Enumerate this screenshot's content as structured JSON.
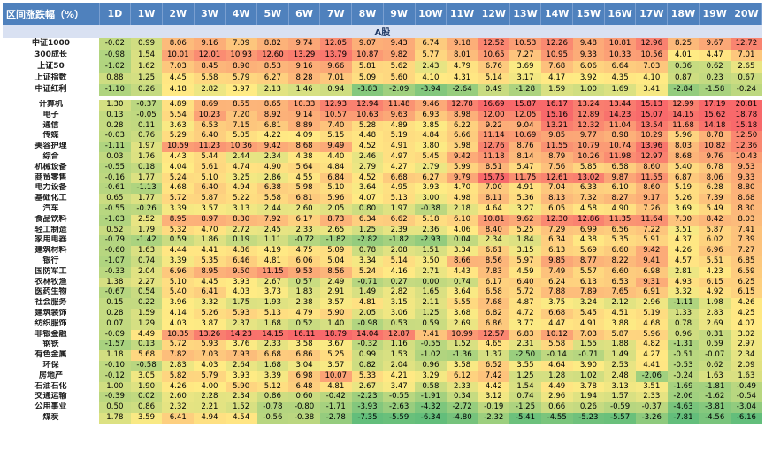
{
  "chart_data": {
    "type": "heatmap",
    "corner_label": "区间涨跌幅（%）",
    "columns": [
      "1D",
      "1W",
      "2W",
      "3W",
      "4W",
      "5W",
      "6W",
      "7W",
      "8W",
      "9W",
      "10W",
      "11W",
      "12W",
      "13W",
      "14W",
      "15W",
      "16W",
      "17W",
      "18W",
      "19W",
      "20W"
    ],
    "groups": [
      {
        "title": "A股",
        "rows": [
          {
            "name": "中证1000",
            "values": [
              -0.02,
              0.99,
              8.06,
              9.16,
              7.09,
              8.82,
              9.74,
              12.05,
              9.07,
              9.43,
              6.74,
              9.18,
              12.52,
              10.53,
              12.26,
              9.48,
              10.81,
              12.96,
              8.25,
              9.67,
              12.72
            ]
          },
          {
            "name": "300成长",
            "values": [
              -0.98,
              1.54,
              10.01,
              12.01,
              10.93,
              12.6,
              13.29,
              13.79,
              10.87,
              9.82,
              5.77,
              8.01,
              10.65,
              7.27,
              10.95,
              9.33,
              10.33,
              10.56,
              4.01,
              4.47,
              7.01
            ]
          },
          {
            "name": "上证50",
            "values": [
              -1.02,
              1.62,
              7.03,
              8.45,
              8.9,
              8.53,
              9.16,
              9.66,
              5.81,
              5.62,
              2.43,
              4.79,
              6.76,
              3.69,
              7.68,
              6.06,
              6.64,
              7.03,
              0.36,
              0.62,
              2.65
            ]
          },
          {
            "name": "上证指数",
            "values": [
              0.88,
              1.25,
              4.45,
              5.58,
              5.79,
              6.27,
              8.28,
              7.01,
              5.09,
              5.6,
              4.1,
              4.31,
              5.14,
              3.17,
              4.17,
              3.92,
              4.35,
              4.1,
              0.87,
              0.23,
              0.67
            ]
          },
          {
            "name": "中证红利",
            "values": [
              -1.1,
              0.26,
              4.18,
              2.82,
              3.97,
              2.13,
              1.46,
              0.94,
              -3.83,
              -2.09,
              -3.94,
              -2.64,
              0.49,
              -1.28,
              1.59,
              1.0,
              1.69,
              3.41,
              -2.84,
              -1.58,
              -0.24
            ]
          }
        ]
      },
      {
        "title": "",
        "rows": [
          {
            "name": "计算机",
            "values": [
              1.3,
              -0.37,
              4.89,
              8.69,
              8.55,
              8.65,
              10.33,
              12.93,
              12.94,
              11.48,
              9.46,
              12.78,
              16.69,
              15.87,
              16.17,
              13.24,
              13.44,
              15.13,
              12.99,
              17.19,
              20.81
            ]
          },
          {
            "name": "电子",
            "values": [
              0.13,
              -0.05,
              5.54,
              10.23,
              7.2,
              8.92,
              9.14,
              10.57,
              10.63,
              9.63,
              6.93,
              8.98,
              12.0,
              12.05,
              15.16,
              12.89,
              14.23,
              15.07,
              14.15,
              15.62,
              18.78
            ]
          },
          {
            "name": "通信",
            "values": [
              0.28,
              0.11,
              3.63,
              6.53,
              7.15,
              6.81,
              8.89,
              7.4,
              5.28,
              4.89,
              3.85,
              6.22,
              9.22,
              9.04,
              13.21,
              12.32,
              11.04,
              13.54,
              11.68,
              14.18,
              15.18
            ]
          },
          {
            "name": "传媒",
            "values": [
              -0.03,
              0.76,
              5.29,
              6.4,
              5.05,
              4.22,
              4.09,
              5.15,
              4.48,
              5.19,
              4.84,
              6.66,
              11.14,
              10.69,
              9.85,
              9.77,
              8.98,
              10.29,
              5.96,
              8.78,
              12.5
            ]
          },
          {
            "name": "美容护理",
            "values": [
              -1.11,
              1.97,
              10.59,
              11.23,
              10.36,
              9.42,
              8.68,
              9.49,
              4.52,
              4.91,
              3.8,
              5.98,
              12.76,
              8.76,
              11.55,
              10.79,
              10.74,
              13.96,
              8.03,
              10.82,
              12.36
            ]
          },
          {
            "name": "综合",
            "values": [
              0.03,
              1.76,
              4.43,
              5.44,
              2.44,
              2.34,
              4.38,
              4.4,
              2.46,
              4.97,
              5.45,
              9.42,
              11.18,
              8.14,
              8.79,
              10.26,
              11.98,
              12.97,
              8.68,
              9.76,
              10.43
            ]
          },
          {
            "name": "机械设备",
            "values": [
              -0.55,
              0.18,
              4.04,
              5.61,
              4.74,
              4.9,
              5.64,
              4.84,
              2.79,
              4.27,
              2.79,
              5.99,
              8.51,
              5.47,
              7.56,
              5.85,
              6.58,
              8.6,
              5.4,
              6.78,
              9.53
            ]
          },
          {
            "name": "商贸零售",
            "values": [
              -0.16,
              1.77,
              5.24,
              5.1,
              3.25,
              2.86,
              4.55,
              6.84,
              4.52,
              6.68,
              6.27,
              9.79,
              15.75,
              11.75,
              12.61,
              13.02,
              9.87,
              11.55,
              6.87,
              8.06,
              9.33
            ]
          },
          {
            "name": "电力设备",
            "values": [
              -0.61,
              -1.13,
              4.68,
              6.4,
              4.94,
              6.38,
              5.98,
              5.1,
              3.64,
              4.95,
              3.93,
              4.7,
              7.0,
              4.91,
              7.04,
              6.33,
              6.1,
              8.6,
              5.19,
              6.28,
              8.8
            ]
          },
          {
            "name": "基础化工",
            "values": [
              0.65,
              1.77,
              5.72,
              5.87,
              5.22,
              5.58,
              6.81,
              5.96,
              4.07,
              5.13,
              3.0,
              4.98,
              8.11,
              5.36,
              8.13,
              7.32,
              8.27,
              9.17,
              5.26,
              7.39,
              8.68
            ]
          },
          {
            "name": "汽车",
            "values": [
              -0.55,
              -0.26,
              3.39,
              3.57,
              3.13,
              2.44,
              2.6,
              2.05,
              0.8,
              1.97,
              -0.38,
              2.18,
              4.64,
              3.27,
              6.05,
              4.58,
              4.9,
              7.26,
              3.69,
              5.49,
              8.3
            ]
          },
          {
            "name": "食品饮料",
            "values": [
              -1.03,
              2.52,
              8.95,
              8.97,
              8.3,
              7.92,
              6.17,
              8.73,
              6.34,
              6.62,
              5.18,
              6.1,
              10.81,
              9.62,
              12.3,
              12.86,
              11.35,
              11.64,
              7.3,
              8.42,
              8.03
            ]
          },
          {
            "name": "轻工制造",
            "values": [
              0.52,
              1.79,
              5.32,
              4.7,
              2.72,
              2.45,
              2.33,
              2.65,
              1.25,
              2.39,
              2.36,
              4.06,
              8.4,
              5.25,
              7.29,
              6.99,
              6.56,
              7.22,
              3.51,
              5.87,
              7.41
            ]
          },
          {
            "name": "家用电器",
            "values": [
              -0.79,
              -1.42,
              0.59,
              1.86,
              0.19,
              1.11,
              -0.72,
              -1.82,
              -2.82,
              -1.82,
              -2.93,
              0.04,
              2.34,
              1.84,
              6.34,
              4.38,
              5.35,
              5.91,
              4.37,
              6.02,
              7.39
            ]
          },
          {
            "name": "建筑材料",
            "values": [
              -0.6,
              1.63,
              4.44,
              4.41,
              4.86,
              4.19,
              4.75,
              5.09,
              0.78,
              2.08,
              1.51,
              3.34,
              6.61,
              3.15,
              6.13,
              5.69,
              6.6,
              9.42,
              4.26,
              6.96,
              7.27
            ]
          },
          {
            "name": "银行",
            "values": [
              -1.07,
              0.74,
              3.39,
              5.35,
              6.46,
              4.81,
              6.06,
              5.04,
              3.34,
              5.14,
              3.5,
              8.66,
              8.56,
              5.97,
              9.85,
              8.77,
              8.22,
              9.41,
              4.57,
              5.51,
              6.85
            ]
          },
          {
            "name": "国防军工",
            "values": [
              -0.33,
              2.04,
              6.96,
              8.95,
              9.5,
              11.15,
              9.53,
              8.56,
              5.24,
              4.16,
              2.71,
              4.43,
              7.83,
              4.59,
              7.49,
              5.57,
              6.6,
              6.98,
              2.81,
              4.23,
              6.59
            ]
          },
          {
            "name": "农林牧渔",
            "values": [
              1.38,
              2.27,
              5.1,
              4.45,
              3.93,
              2.67,
              0.57,
              2.49,
              -0.71,
              0.27,
              0.0,
              0.74,
              6.17,
              6.4,
              6.24,
              6.13,
              6.53,
              9.31,
              4.93,
              6.15,
              6.25
            ]
          },
          {
            "name": "医药生物",
            "values": [
              -0.67,
              0.54,
              5.4,
              6.41,
              4.03,
              3.73,
              1.83,
              2.91,
              1.49,
              2.82,
              1.65,
              3.64,
              6.58,
              5.72,
              7.88,
              7.89,
              7.65,
              6.91,
              3.32,
              4.92,
              6.15
            ]
          },
          {
            "name": "社会服务",
            "values": [
              0.15,
              0.22,
              3.96,
              3.32,
              1.75,
              1.93,
              2.38,
              3.57,
              4.81,
              3.15,
              2.11,
              5.55,
              7.68,
              4.87,
              3.75,
              3.24,
              2.12,
              2.96,
              -1.11,
              1.98,
              4.26
            ]
          },
          {
            "name": "建筑装饰",
            "values": [
              0.28,
              1.59,
              4.14,
              5.26,
              5.93,
              5.13,
              4.79,
              5.9,
              2.05,
              3.06,
              1.25,
              3.68,
              6.82,
              4.72,
              6.68,
              5.45,
              4.51,
              5.19,
              1.33,
              2.83,
              4.25
            ]
          },
          {
            "name": "纺织服饰",
            "values": [
              0.07,
              1.29,
              4.03,
              3.87,
              2.37,
              1.68,
              0.52,
              1.4,
              -0.98,
              0.53,
              0.59,
              2.69,
              6.86,
              3.77,
              4.47,
              4.91,
              3.88,
              4.68,
              0.78,
              2.69,
              4.07
            ]
          },
          {
            "name": "非银金融",
            "values": [
              -0.09,
              4.49,
              10.35,
              13.26,
              14.23,
              14.15,
              16.11,
              18.79,
              14.04,
              12.87,
              7.41,
              10.99,
              12.57,
              6.83,
              10.12,
              7.03,
              5.87,
              5.96,
              0.96,
              0.31,
              3.02
            ]
          },
          {
            "name": "钢铁",
            "values": [
              -1.57,
              0.13,
              5.72,
              5.93,
              3.76,
              2.33,
              3.58,
              3.67,
              -0.32,
              1.16,
              -0.55,
              1.52,
              4.65,
              2.31,
              5.58,
              1.55,
              1.88,
              4.82,
              -1.31,
              0.59,
              2.97
            ]
          },
          {
            "name": "有色金属",
            "values": [
              1.18,
              5.68,
              7.82,
              7.03,
              7.93,
              6.68,
              6.86,
              5.25,
              0.99,
              1.53,
              -1.02,
              -1.36,
              1.37,
              -2.5,
              -0.14,
              -0.71,
              1.49,
              4.27,
              -0.51,
              -0.07,
              2.34
            ]
          },
          {
            "name": "环保",
            "values": [
              -0.1,
              -0.58,
              2.83,
              4.03,
              2.64,
              1.68,
              3.04,
              3.57,
              0.82,
              2.04,
              0.96,
              3.58,
              6.52,
              3.55,
              4.64,
              3.9,
              2.53,
              4.41,
              -0.53,
              0.62,
              2.09
            ]
          },
          {
            "name": "房地产",
            "values": [
              -0.12,
              3.05,
              5.82,
              5.79,
              3.93,
              3.39,
              6.98,
              10.07,
              5.33,
              4.21,
              3.29,
              6.12,
              7.42,
              1.25,
              1.28,
              1.02,
              2.48,
              -2.06,
              -0.24,
              1.63,
              1.63
            ]
          },
          {
            "name": "石油石化",
            "values": [
              1.0,
              1.9,
              4.26,
              4.0,
              5.9,
              5.12,
              6.48,
              4.81,
              2.67,
              3.47,
              0.58,
              2.33,
              4.42,
              1.54,
              4.49,
              3.78,
              3.13,
              3.51,
              -1.69,
              -1.81,
              -0.49
            ]
          },
          {
            "name": "交通运输",
            "values": [
              -0.39,
              0.02,
              2.6,
              2.28,
              2.34,
              0.86,
              0.6,
              -0.42,
              -2.23,
              -0.55,
              -1.91,
              0.34,
              3.12,
              0.74,
              2.96,
              1.94,
              1.57,
              2.33,
              -2.06,
              -1.62,
              -0.54
            ]
          },
          {
            "name": "公用事业",
            "values": [
              0.5,
              0.86,
              2.32,
              2.21,
              1.52,
              -0.78,
              -0.8,
              -1.71,
              -3.93,
              -2.63,
              -4.32,
              -2.72,
              -0.19,
              -1.25,
              0.66,
              0.26,
              -0.59,
              -0.37,
              -4.63,
              -3.81,
              -3.04
            ]
          },
          {
            "name": "煤炭",
            "values": [
              1.78,
              3.59,
              6.41,
              4.94,
              4.54,
              -0.56,
              -0.38,
              -2.78,
              -7.35,
              -5.59,
              -6.34,
              -4.8,
              -2.32,
              -5.41,
              -4.55,
              -5.23,
              -5.57,
              -3.26,
              -7.81,
              -4.56,
              -6.16
            ]
          }
        ]
      }
    ],
    "color_scale": {
      "low": "#63be7b",
      "mid": "#ffeb84",
      "high": "#f8696b"
    },
    "ylim": [
      -8,
      21
    ]
  }
}
